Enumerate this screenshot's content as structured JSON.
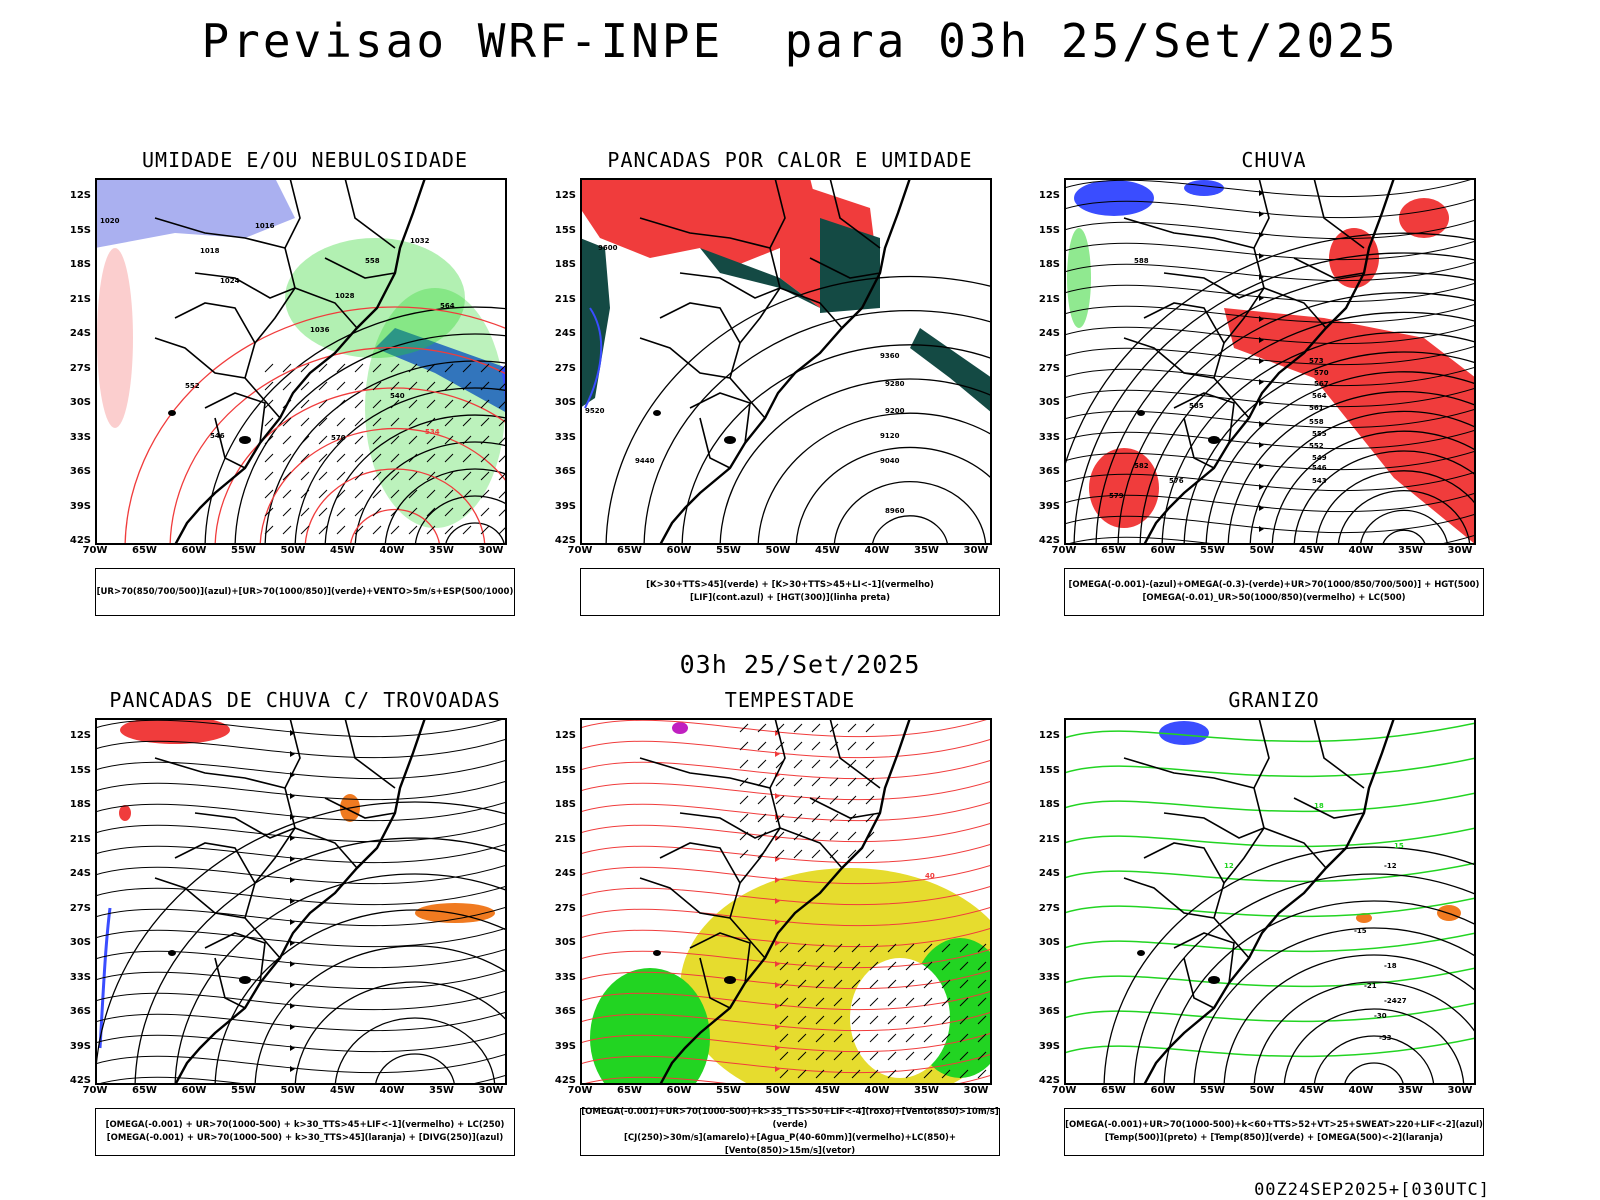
{
  "header": {
    "title": "Previsao WRF-INPE  para 03h 25/Set/2025"
  },
  "subheader": {
    "time": "03h 25/Set/2025"
  },
  "footer": {
    "run": "00Z24SEP2025+[030UTC]"
  },
  "axes": {
    "lat": [
      "12S",
      "15S",
      "18S",
      "21S",
      "24S",
      "27S",
      "30S",
      "33S",
      "36S",
      "39S",
      "42S"
    ],
    "lon": [
      "70W",
      "65W",
      "60W",
      "55W",
      "50W",
      "45W",
      "40W",
      "35W",
      "30W"
    ]
  },
  "colors": {
    "blue": "#3a4dff",
    "lightblue": "#aab0f0",
    "green": "#22d422",
    "red": "#f03c3c",
    "darkgreen": "#144a44",
    "yellow": "#e6dc2e",
    "orange": "#f07a20",
    "purple": "#c020c0"
  },
  "panels": [
    {
      "title": "UMIDADE E/OU NEBULOSIDADE",
      "legend": [
        "[UR>70(850/700/500)](azul)+[UR>70(1000/850)](verde)+VENTO>5m/s+ESP(500/1000)"
      ],
      "contour_labels": [
        "1020",
        "1016",
        "1018",
        "1024",
        "1028",
        "1032",
        "1036",
        "570",
        "564",
        "558",
        "552",
        "546",
        "540",
        "534"
      ]
    },
    {
      "title": "PANCADAS POR CALOR E UMIDADE",
      "legend": [
        "[K>30+TTS>45](verde) + [K>30+TTS>45+LI<-1](vermelho)",
        "[LIF](cont.azul) + [HGT(300)](linha preta)"
      ],
      "contour_labels": [
        "9600",
        "9520",
        "9440",
        "9360",
        "9280",
        "9200",
        "9120",
        "9040",
        "8960"
      ]
    },
    {
      "title": "CHUVA",
      "legend": [
        "[OMEGA(-0.001)-(azul)+OMEGA(-0.3)-(verde)+UR>70(1000/850/700/500)] + HGT(500)",
        "[OMEGA(-0.01)_UR>50(1000/850)(vermelho) + LC(500)"
      ],
      "contour_labels": [
        "588",
        "585",
        "582",
        "579",
        "576",
        "573",
        "570",
        "567",
        "564",
        "561",
        "558",
        "555",
        "552",
        "549",
        "546",
        "543"
      ]
    },
    {
      "title": "PANCADAS DE CHUVA C/ TROVOADAS",
      "legend": [
        "[OMEGA(-0.001) + UR>70(1000-500) + k>30_TTS>45+LIF<-1](vermelho) + LC(250)",
        "[OMEGA(-0.001) + UR>70(1000-500) + k>30_TTS>45](laranja) + [DIVG(250)](azul)"
      ],
      "contour_labels": []
    },
    {
      "title": "TEMPESTADE",
      "legend": [
        "[OMEGA(-0.001)+UR>70(1000-500)+k>35_TTS>50+LIF<-4](roxo)+[Vento(850)>10m/s](verde)",
        "[CJ(250)>30m/s](amarelo)+[Agua_P(40-60mm)](vermelho)+LC(850)+[Vento(850)>15m/s](vetor)"
      ],
      "contour_labels": [
        "40"
      ]
    },
    {
      "title": "GRANIZO",
      "legend": [
        "[OMEGA(-0.001)+UR>70(1000-500)+k<60+TTS>52+VT>25+SWEAT>220+LIF<-2](azul)",
        "[Temp(500)](preto) + [Temp(850)](verde) + [OMEGA(500)<-2](laranja)"
      ],
      "contour_labels": [
        "-12",
        "-15",
        "-18",
        "-21",
        "-24",
        "-27",
        "-30",
        "-33",
        "12",
        "15",
        "18"
      ]
    }
  ]
}
